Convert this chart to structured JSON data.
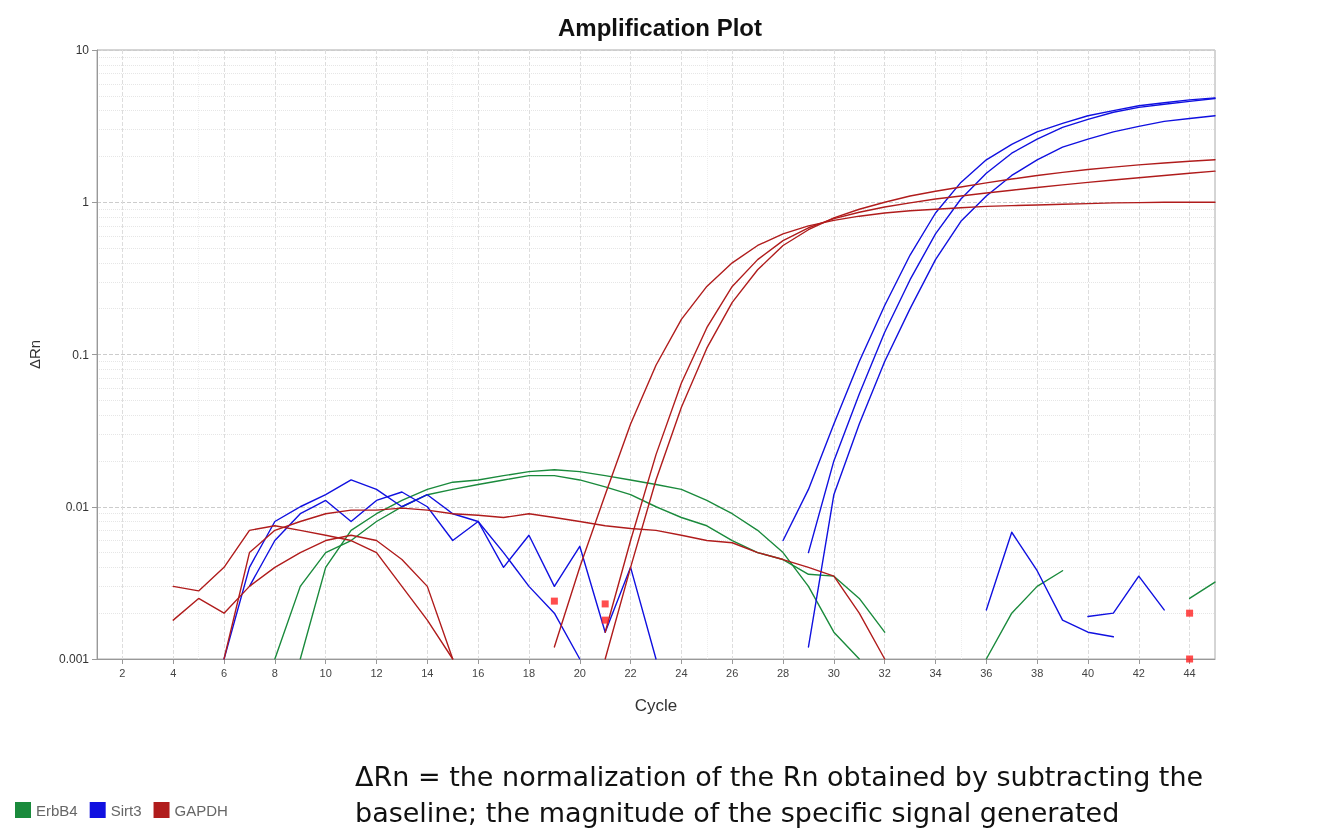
{
  "chart_data": {
    "type": "line",
    "title": "Amplification Plot",
    "xlabel": "Cycle",
    "ylabel": "ΔRn",
    "log": "y",
    "grid": true,
    "legend": "bottom left",
    "marker": "none",
    "line_style": "solid",
    "xlim": [
      1,
      45
    ],
    "xticks": [
      2,
      4,
      6,
      8,
      10,
      12,
      14,
      16,
      18,
      20,
      22,
      24,
      26,
      28,
      30,
      32,
      34,
      36,
      38,
      40,
      42,
      44
    ],
    "ylim": [
      0.001,
      10
    ],
    "yticks": [
      0.001,
      0.01,
      0.1,
      1,
      10
    ],
    "annotations": [
      "ΔRn = the normalization of the Rn obtained by subtracting the baseline; the magnitude of the specific signal generated"
    ],
    "series": [
      {
        "name": "ErbB4",
        "color": "#1a8a3c",
        "x": [
          9,
          10,
          11,
          12,
          13,
          14,
          15,
          16,
          17,
          18,
          19,
          20,
          21,
          22,
          23,
          24,
          25,
          26,
          27,
          28,
          29,
          30,
          31
        ],
        "values": [
          0.001,
          0.004,
          0.007,
          0.009,
          0.011,
          0.013,
          0.0145,
          0.015,
          0.016,
          0.017,
          0.0175,
          0.017,
          0.016,
          0.015,
          0.014,
          0.013,
          0.011,
          0.009,
          0.007,
          0.005,
          0.003,
          0.0015,
          0.001
        ]
      },
      {
        "color": "#1a8a3c",
        "x": [
          8,
          9,
          10,
          11,
          12,
          13,
          14,
          15,
          16,
          17,
          18,
          19,
          20,
          21,
          22,
          23,
          24,
          25,
          26,
          27,
          28,
          29,
          30,
          31,
          32
        ],
        "values": [
          0.001,
          0.003,
          0.005,
          0.006,
          0.008,
          0.01,
          0.012,
          0.013,
          0.014,
          0.015,
          0.016,
          0.016,
          0.015,
          0.0135,
          0.012,
          0.01,
          0.0085,
          0.0075,
          0.006,
          0.005,
          0.0045,
          0.0036,
          0.0035,
          0.0025,
          0.0015
        ]
      },
      {
        "color": "#1a8a3c",
        "x": [
          36,
          37,
          38,
          39
        ],
        "values": [
          0.001,
          0.002,
          0.003,
          0.0038
        ]
      },
      {
        "color": "#1a8a3c",
        "x": [
          44,
          45
        ],
        "values": [
          0.0025,
          0.0032
        ]
      },
      {
        "name": "Sirt3",
        "color": "#1010e0",
        "x": [
          28,
          29,
          30,
          31,
          32,
          33,
          34,
          35,
          36,
          37,
          38,
          39,
          40,
          41,
          42,
          43,
          44,
          45
        ],
        "values": [
          0.006,
          0.013,
          0.035,
          0.09,
          0.21,
          0.45,
          0.85,
          1.35,
          1.9,
          2.4,
          2.9,
          3.3,
          3.7,
          4.0,
          4.3,
          4.5,
          4.7,
          4.85
        ]
      },
      {
        "color": "#1010e0",
        "x": [
          29,
          30,
          31,
          32,
          33,
          34,
          35,
          36,
          37,
          38,
          39,
          40,
          41,
          42,
          43,
          44,
          45
        ],
        "values": [
          0.005,
          0.02,
          0.055,
          0.14,
          0.31,
          0.62,
          1.05,
          1.55,
          2.1,
          2.6,
          3.1,
          3.5,
          3.9,
          4.2,
          4.4,
          4.6,
          4.8
        ]
      },
      {
        "color": "#1010e0",
        "x": [
          29,
          30,
          31,
          32,
          33,
          34,
          35,
          36,
          37,
          38,
          39,
          40,
          41,
          42,
          43,
          44,
          45
        ],
        "values": [
          0.0012,
          0.012,
          0.035,
          0.09,
          0.2,
          0.42,
          0.75,
          1.1,
          1.5,
          1.9,
          2.3,
          2.6,
          2.9,
          3.15,
          3.4,
          3.55,
          3.7
        ]
      },
      {
        "color": "#1010e0",
        "x": [
          6,
          7,
          8,
          9,
          10,
          11,
          12,
          13,
          14,
          15,
          16,
          17,
          18,
          19,
          20
        ],
        "values": [
          0.001,
          0.004,
          0.008,
          0.01,
          0.012,
          0.015,
          0.013,
          0.01,
          0.012,
          0.009,
          0.008,
          0.005,
          0.003,
          0.002,
          0.001
        ]
      },
      {
        "color": "#1010e0",
        "x": [
          7,
          8,
          9,
          10,
          11,
          12,
          13,
          14,
          15,
          16,
          17,
          18,
          19,
          20,
          21,
          22,
          23
        ],
        "values": [
          0.003,
          0.006,
          0.009,
          0.011,
          0.008,
          0.011,
          0.0125,
          0.01,
          0.006,
          0.008,
          0.004,
          0.0065,
          0.003,
          0.0055,
          0.0015,
          0.004,
          0.001
        ]
      },
      {
        "color": "#1010e0",
        "x": [
          36,
          37,
          38,
          39,
          40,
          41
        ],
        "values": [
          0.0021,
          0.0068,
          0.0038,
          0.0018,
          0.0015,
          0.0014
        ]
      },
      {
        "color": "#1010e0",
        "x": [
          40,
          41,
          42,
          43
        ],
        "values": [
          0.0019,
          0.002,
          0.0035,
          0.0021
        ]
      },
      {
        "name": "GAPDH",
        "color": "#b01c1c",
        "x": [
          21,
          22,
          23,
          24,
          25,
          26,
          27,
          28,
          29,
          30,
          31,
          32,
          33,
          34,
          35,
          36,
          37,
          38,
          39,
          40,
          41,
          42,
          43,
          44,
          45
        ],
        "values": [
          0.0015,
          0.006,
          0.022,
          0.065,
          0.15,
          0.28,
          0.42,
          0.56,
          0.68,
          0.78,
          0.86,
          0.93,
          0.99,
          1.05,
          1.1,
          1.15,
          1.2,
          1.25,
          1.3,
          1.35,
          1.4,
          1.45,
          1.5,
          1.55,
          1.6
        ]
      },
      {
        "color": "#b01c1c",
        "x": [
          21,
          22,
          23,
          24,
          25,
          26,
          27,
          28,
          29,
          30,
          31,
          32,
          33,
          34,
          35,
          36,
          37,
          38,
          39,
          40,
          41,
          42,
          43,
          44,
          45
        ],
        "values": [
          0.001,
          0.004,
          0.015,
          0.045,
          0.11,
          0.22,
          0.36,
          0.52,
          0.66,
          0.79,
          0.9,
          1.0,
          1.1,
          1.18,
          1.26,
          1.34,
          1.42,
          1.5,
          1.57,
          1.64,
          1.7,
          1.76,
          1.81,
          1.86,
          1.9
        ]
      },
      {
        "color": "#b01c1c",
        "x": [
          19,
          20,
          21,
          22,
          23,
          24,
          25,
          26,
          27,
          28,
          29,
          30,
          31,
          32,
          33,
          34,
          35,
          36,
          37,
          38,
          39,
          40,
          41,
          42,
          43,
          44,
          45
        ],
        "values": [
          0.0012,
          0.004,
          0.012,
          0.035,
          0.085,
          0.17,
          0.28,
          0.4,
          0.52,
          0.62,
          0.7,
          0.76,
          0.81,
          0.85,
          0.88,
          0.9,
          0.92,
          0.94,
          0.95,
          0.96,
          0.97,
          0.98,
          0.99,
          0.995,
          1.0,
          1.0,
          1.0
        ]
      },
      {
        "color": "#b01c1c",
        "x": [
          4,
          5,
          6,
          7,
          8,
          9,
          10,
          11,
          12,
          13,
          14,
          15
        ],
        "values": [
          0.003,
          0.0028,
          0.004,
          0.007,
          0.0075,
          0.007,
          0.0065,
          0.006,
          0.005,
          0.003,
          0.0018,
          0.001
        ]
      },
      {
        "color": "#b01c1c",
        "x": [
          6,
          7,
          8,
          9,
          10,
          11,
          12,
          13,
          14,
          15,
          16,
          17,
          18,
          19,
          20,
          21,
          22,
          23,
          24,
          25,
          26,
          27,
          28,
          29,
          30,
          31,
          32
        ],
        "values": [
          0.001,
          0.005,
          0.007,
          0.008,
          0.009,
          0.0095,
          0.0095,
          0.0098,
          0.0095,
          0.009,
          0.0088,
          0.0085,
          0.009,
          0.0085,
          0.008,
          0.0075,
          0.0072,
          0.007,
          0.0065,
          0.006,
          0.0058,
          0.005,
          0.0045,
          0.004,
          0.0035,
          0.002,
          0.001
        ]
      },
      {
        "color": "#b01c1c",
        "x": [
          4,
          5,
          6,
          7,
          8,
          9,
          10,
          11,
          12,
          13,
          14,
          15
        ],
        "values": [
          0.0018,
          0.0025,
          0.002,
          0.003,
          0.004,
          0.005,
          0.006,
          0.0065,
          0.006,
          0.0045,
          0.003,
          0.001
        ]
      },
      {
        "type": "scatter",
        "marker": "square",
        "color": "#ff2020",
        "x": [
          19,
          21,
          21,
          44,
          44
        ],
        "values": [
          0.0024,
          0.0023,
          0.0018,
          0.002,
          0.001
        ]
      }
    ]
  }
}
